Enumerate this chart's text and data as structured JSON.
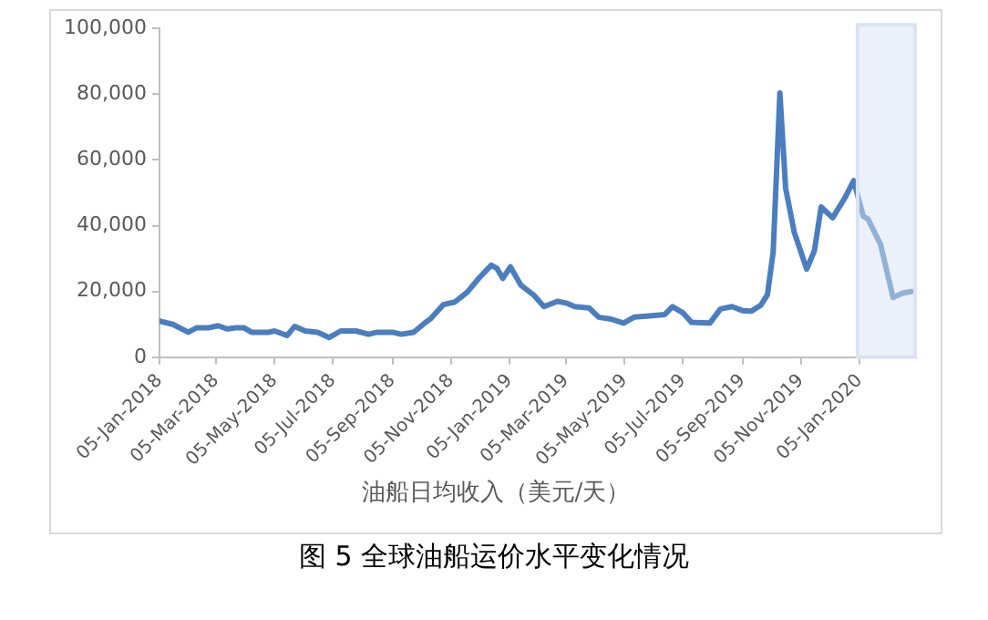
{
  "chart_data": {
    "type": "line",
    "title": "图 5  全球油船运价水平变化情况",
    "xlabel": "油船日均收入（美元/天）",
    "x": [
      "2018-01-05",
      "2018-01-19",
      "2018-02-04",
      "2018-02-13",
      "2018-02-26",
      "2018-03-07",
      "2018-03-17",
      "2018-03-26",
      "2018-04-03",
      "2018-04-11",
      "2018-04-29",
      "2018-05-05",
      "2018-05-18",
      "2018-05-26",
      "2018-06-06",
      "2018-06-19",
      "2018-07-01",
      "2018-07-13",
      "2018-07-29",
      "2018-08-11",
      "2018-08-20",
      "2018-09-05",
      "2018-09-14",
      "2018-09-27",
      "2018-10-09",
      "2018-10-15",
      "2018-10-28",
      "2018-11-09",
      "2018-11-22",
      "2018-12-04",
      "2018-12-17",
      "2018-12-23",
      "2018-12-29",
      "2019-01-06",
      "2019-01-17",
      "2019-01-30",
      "2019-02-10",
      "2019-02-24",
      "2019-03-05",
      "2019-03-14",
      "2019-03-29",
      "2019-04-08",
      "2019-04-21",
      "2019-05-04",
      "2019-05-15",
      "2019-05-28",
      "2019-06-16",
      "2019-06-24",
      "2019-07-05",
      "2019-07-14",
      "2019-08-02",
      "2019-08-13",
      "2019-08-25",
      "2019-09-05",
      "2019-09-14",
      "2019-09-24",
      "2019-10-01",
      "2019-10-07",
      "2019-10-14",
      "2019-10-20",
      "2019-10-29",
      "2019-11-11",
      "2019-11-19",
      "2019-11-26",
      "2019-12-08",
      "2019-12-21",
      "2019-12-30",
      "2020-01-09",
      "2020-01-14",
      "2020-01-27",
      "2020-02-09",
      "2020-02-19",
      "2020-02-28"
    ],
    "series": [
      {
        "color": "#4a7ebf",
        "values": [
          11000,
          10000,
          7600,
          9000,
          9000,
          9600,
          8600,
          9000,
          9000,
          7600,
          7600,
          8000,
          6600,
          9400,
          8000,
          7600,
          6000,
          8000,
          8000,
          7000,
          7600,
          7600,
          7000,
          7600,
          10500,
          11800,
          16000,
          16800,
          19800,
          24000,
          28000,
          27000,
          24000,
          27500,
          21900,
          19000,
          15400,
          17000,
          16500,
          15400,
          15000,
          12200,
          11600,
          10400,
          12200,
          12500,
          13000,
          15400,
          13500,
          10600,
          10400,
          14700,
          15400,
          14200,
          14000,
          15800,
          19000,
          32000,
          80400,
          51400,
          38000,
          26800,
          32400,
          45700,
          42400,
          48600,
          53700,
          42900,
          42000,
          34300,
          18200,
          19500,
          20000
        ]
      }
    ],
    "xlim": [
      "2018-01-05",
      "2020-03-03"
    ],
    "xticks": [
      {
        "value": "2018-01-05",
        "label": "05-Jan-2018"
      },
      {
        "value": "2018-03-05",
        "label": "05-Mar-2018"
      },
      {
        "value": "2018-05-05",
        "label": "05-May-2018"
      },
      {
        "value": "2018-07-05",
        "label": "05-Jul-2018"
      },
      {
        "value": "2018-09-05",
        "label": "05-Sep-2018"
      },
      {
        "value": "2018-11-05",
        "label": "05-Nov-2018"
      },
      {
        "value": "2019-01-05",
        "label": "05-Jan-2019"
      },
      {
        "value": "2019-03-05",
        "label": "05-Mar-2019"
      },
      {
        "value": "2019-05-05",
        "label": "05-May-2019"
      },
      {
        "value": "2019-07-05",
        "label": "05-Jul-2019"
      },
      {
        "value": "2019-09-05",
        "label": "05-Sep-2019"
      },
      {
        "value": "2019-11-05",
        "label": "05-Nov-2019"
      },
      {
        "value": "2020-01-05",
        "label": "05-Jan-2020"
      }
    ],
    "ylim": [
      0,
      100000
    ],
    "yticks": [
      {
        "value": 0,
        "label": "0"
      },
      {
        "value": 20000,
        "label": "20,000"
      },
      {
        "value": 40000,
        "label": "40,000"
      },
      {
        "value": 60000,
        "label": "60,000"
      },
      {
        "value": 80000,
        "label": "80,000"
      },
      {
        "value": 100000,
        "label": "100,000"
      }
    ],
    "bands": [
      {
        "axis": "x",
        "from": "2020-01-03",
        "to": "2020-03-03",
        "color": "#dae3f3"
      }
    ],
    "grid": false,
    "legend": false,
    "marker": "none",
    "line_style": "solid"
  }
}
